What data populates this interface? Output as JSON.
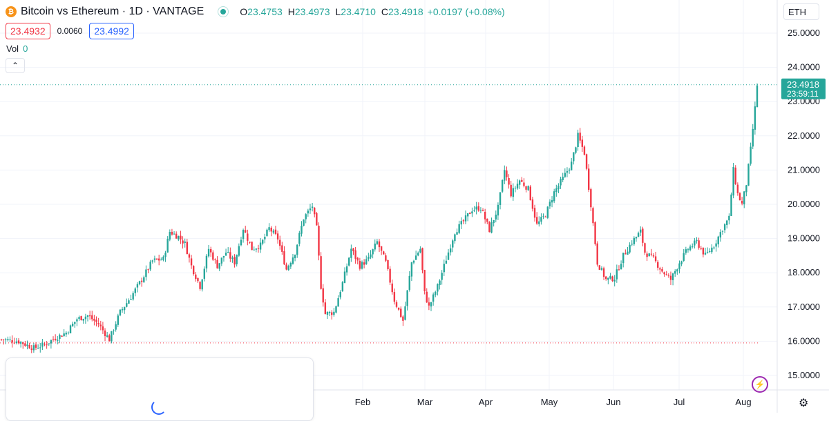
{
  "header": {
    "logo_glyph": "₿",
    "title": "Bitcoin vs Ethereum · 1D · VANTAGE",
    "ohlc": [
      {
        "label": "O",
        "value": "23.4753"
      },
      {
        "label": "H",
        "value": "23.4973"
      },
      {
        "label": "L",
        "value": "23.4710"
      },
      {
        "label": "C",
        "value": "23.4918"
      }
    ],
    "change": "+0.0197 (+0.08%)"
  },
  "prices": {
    "sell": "23.4932",
    "spread": "0.0060",
    "buy": "23.4992"
  },
  "volume": {
    "label": "Vol",
    "value": "0"
  },
  "symbol_box": "ETH",
  "price_tag": {
    "price": "23.4918",
    "countdown": "23:59:11"
  },
  "colors": {
    "up": "#26a69a",
    "down": "#f23645",
    "grid": "#f0f3fa",
    "accent": "#2962ff"
  },
  "icons": {
    "collapse": "chevron-up-icon",
    "flash": "lightning-icon",
    "settings": "gear-icon"
  },
  "chart_data": {
    "type": "candlestick",
    "y_axis": {
      "min": 15,
      "max": 25,
      "ticks": [
        "15.0000",
        "16.0000",
        "17.0000",
        "18.0000",
        "19.0000",
        "20.0000",
        "21.0000",
        "22.0000",
        "23.0000",
        "24.0000",
        "25.0000"
      ]
    },
    "x_axis_labels": [
      "Feb",
      "Mar",
      "Apr",
      "May",
      "Jun",
      "Jul",
      "Aug"
    ],
    "grid": true,
    "current_price": 23.4918,
    "reference_level": 15.95,
    "close_path": [
      [
        0,
        16.05
      ],
      [
        8,
        16.0
      ],
      [
        15,
        15.8
      ],
      [
        20,
        15.9
      ],
      [
        25,
        16.1
      ],
      [
        30,
        16.25
      ],
      [
        35,
        16.65
      ],
      [
        40,
        16.75
      ],
      [
        45,
        16.5
      ],
      [
        50,
        16.05
      ],
      [
        55,
        16.85
      ],
      [
        60,
        17.3
      ],
      [
        65,
        17.8
      ],
      [
        70,
        18.35
      ],
      [
        75,
        18.4
      ],
      [
        78,
        19.2
      ],
      [
        82,
        19.05
      ],
      [
        85,
        18.85
      ],
      [
        88,
        18.2
      ],
      [
        92,
        17.6
      ],
      [
        96,
        18.7
      ],
      [
        100,
        18.2
      ],
      [
        104,
        18.6
      ],
      [
        108,
        18.3
      ],
      [
        112,
        19.3
      ],
      [
        116,
        18.7
      ],
      [
        120,
        18.8
      ],
      [
        124,
        19.3
      ],
      [
        128,
        19.0
      ],
      [
        132,
        18.1
      ],
      [
        136,
        18.6
      ],
      [
        140,
        19.6
      ],
      [
        144,
        19.95
      ],
      [
        146,
        19.3
      ],
      [
        148,
        17.6
      ],
      [
        150,
        16.8
      ],
      [
        154,
        16.85
      ],
      [
        158,
        17.7
      ],
      [
        162,
        18.7
      ],
      [
        166,
        18.2
      ],
      [
        170,
        18.4
      ],
      [
        174,
        18.9
      ],
      [
        178,
        18.3
      ],
      [
        182,
        17.2
      ],
      [
        186,
        16.6
      ],
      [
        190,
        18.3
      ],
      [
        194,
        18.7
      ],
      [
        196,
        17.4
      ],
      [
        198,
        17.0
      ],
      [
        202,
        17.6
      ],
      [
        206,
        18.4
      ],
      [
        210,
        19.2
      ],
      [
        214,
        19.5
      ],
      [
        218,
        19.85
      ],
      [
        222,
        19.9
      ],
      [
        226,
        19.25
      ],
      [
        230,
        19.9
      ],
      [
        233,
        21.0
      ],
      [
        236,
        20.3
      ],
      [
        240,
        20.7
      ],
      [
        244,
        20.45
      ],
      [
        248,
        19.4
      ],
      [
        252,
        19.7
      ],
      [
        256,
        20.35
      ],
      [
        260,
        20.75
      ],
      [
        264,
        21.2
      ],
      [
        267,
        22.0
      ],
      [
        270,
        21.5
      ],
      [
        273,
        20.0
      ],
      [
        276,
        18.3
      ],
      [
        280,
        17.8
      ],
      [
        284,
        17.85
      ],
      [
        288,
        18.5
      ],
      [
        292,
        18.9
      ],
      [
        296,
        19.2
      ],
      [
        298,
        18.6
      ],
      [
        302,
        18.4
      ],
      [
        306,
        18.05
      ],
      [
        310,
        17.8
      ],
      [
        314,
        18.3
      ],
      [
        318,
        18.7
      ],
      [
        322,
        18.9
      ],
      [
        326,
        18.5
      ],
      [
        330,
        18.8
      ],
      [
        334,
        19.3
      ],
      [
        337,
        19.6
      ],
      [
        339,
        21.0
      ],
      [
        341,
        20.3
      ],
      [
        343,
        20.0
      ],
      [
        345,
        20.6
      ],
      [
        347,
        21.6
      ],
      [
        349,
        22.8
      ],
      [
        350,
        23.49
      ]
    ]
  }
}
